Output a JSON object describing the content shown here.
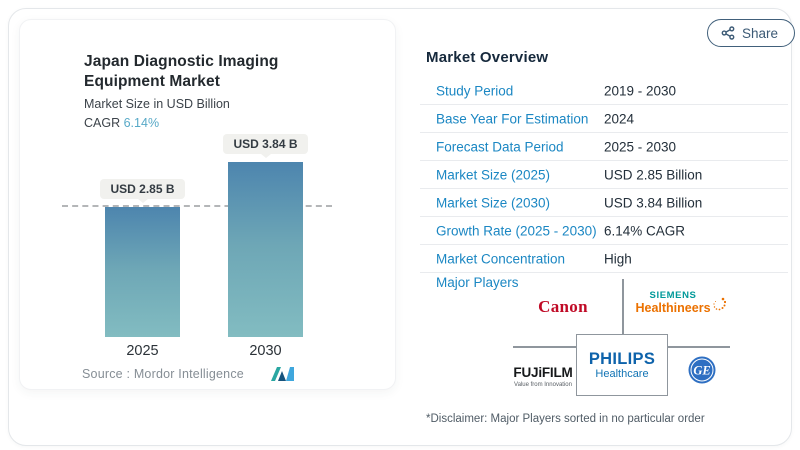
{
  "share": {
    "label": "Share"
  },
  "chart": {
    "title": "Japan Diagnostic Imaging Equipment Market",
    "subtitle": "Market Size in USD Billion",
    "cagr_label": "CAGR",
    "cagr_value": "6.14%",
    "source": "Source :  Mordor Intelligence"
  },
  "chart_data": {
    "type": "bar",
    "title": "Japan Diagnostic Imaging Equipment Market",
    "ylabel": "Market Size in USD Billion",
    "categories": [
      "2025",
      "2030"
    ],
    "values": [
      2.85,
      3.84
    ],
    "value_labels": [
      "USD 2.85 B",
      "USD 3.84 B"
    ],
    "unit": "USD Billion",
    "cagr_pct": 6.14,
    "reference_line": {
      "at_value": 2.85,
      "style": "dashed"
    },
    "grid": false,
    "legend": false,
    "bar_gradient": [
      "#4d85ae",
      "#82bcc1"
    ]
  },
  "overview": {
    "title": "Market Overview",
    "rows": [
      {
        "label": "Study Period",
        "value": "2019 - 2030"
      },
      {
        "label": "Base Year For Estimation",
        "value": "2024"
      },
      {
        "label": "Forecast Data Period",
        "value": "2025 - 2030"
      },
      {
        "label": "Market Size (2025)",
        "value": "USD 2.85 Billion"
      },
      {
        "label": "Market Size (2030)",
        "value": "USD 3.84 Billion"
      },
      {
        "label": "Growth Rate (2025 - 2030)",
        "value": "6.14% CAGR"
      },
      {
        "label": "Market Concentration",
        "value": "High"
      }
    ],
    "major_players_label": "Major Players",
    "players": {
      "canon": "Canon",
      "siemens_line1": "SIEMENS",
      "siemens_line2": "Healthineers",
      "fujifilm": "FUJiFILM",
      "fujifilm_tagline": "Value from Innovation",
      "philips_line1": "PHILIPS",
      "philips_line2": "Healthcare",
      "ge": "GE"
    },
    "disclaimer": "*Disclaimer: Major Players sorted in no particular order"
  },
  "colors": {
    "label_blue": "#1b87c3",
    "accent_teal": "#58a9c7",
    "canon_red": "#c00a26",
    "siemens_teal": "#009999",
    "siemens_orange": "#eb7100",
    "philips_blue": "#0e63ab",
    "ge_blue": "#2e6fc2",
    "bar_top": "#4d85ae",
    "bar_bottom": "#82bcc1"
  }
}
